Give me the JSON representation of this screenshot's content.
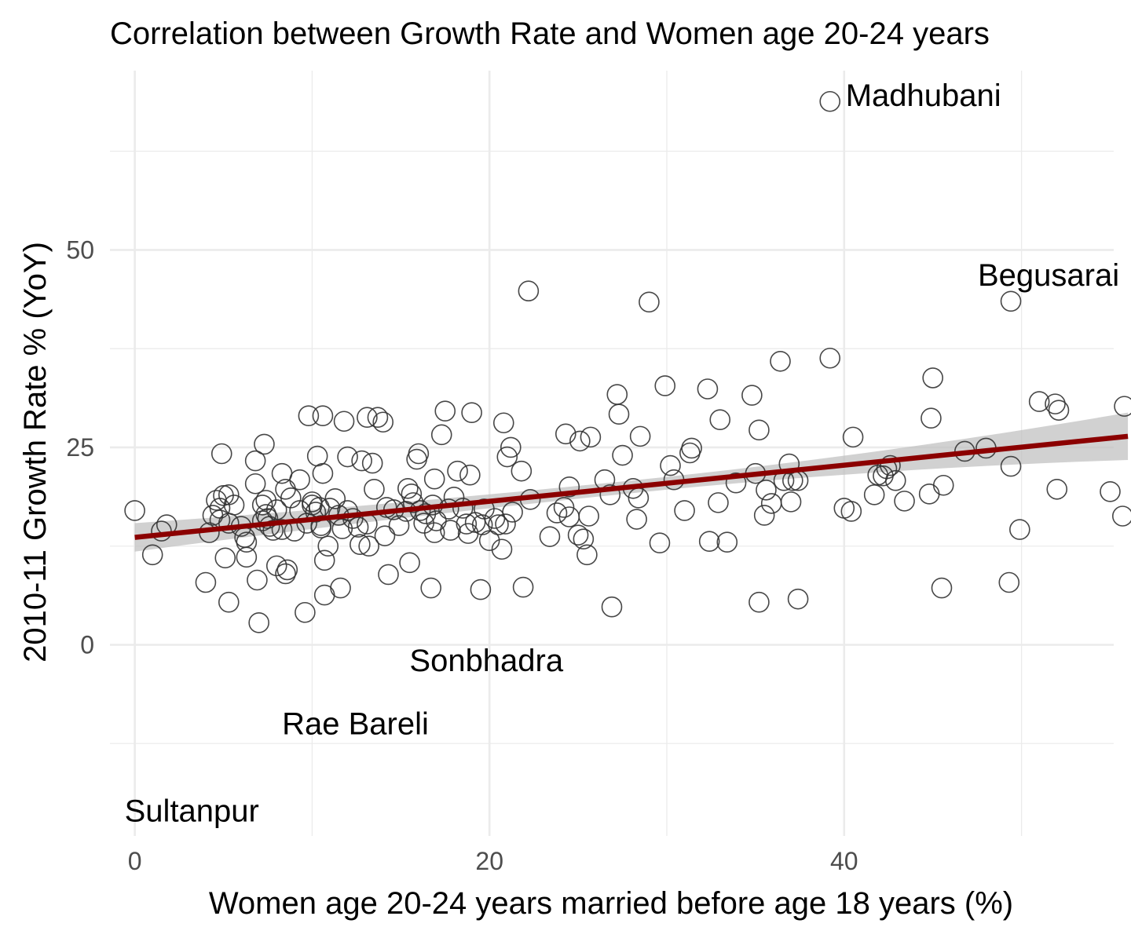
{
  "chart_data": {
    "type": "scatter",
    "title": "Correlation between Growth Rate and Women age 20-24 years",
    "xlabel": "Women age 20-24 years married before age 18 years (%)",
    "ylabel": "2010-11 Growth Rate % (YoY)",
    "xlim": [
      -1.4,
      55.2
    ],
    "ylim": [
      -24.2,
      72.7
    ],
    "x_ticks": [
      0,
      20,
      40
    ],
    "y_ticks": [
      0,
      25,
      50
    ],
    "grid": true,
    "legend": "none",
    "colors": {
      "points": "#333333",
      "trend": "#8b0000",
      "band": "#bebebe"
    },
    "trend_line": {
      "x": [
        0,
        56
      ],
      "y": [
        13.6,
        26.4
      ],
      "ci_half_width_start": 1.8,
      "ci_half_width_mid": 0.8,
      "ci_half_width_end": 3.0
    },
    "annotations": [
      {
        "label": "Madhubani",
        "x": 39.2,
        "y": 68.8
      },
      {
        "label": "Begusarai",
        "x": 49.4,
        "y": 43.5
      },
      {
        "label": "Sonbhadra",
        "x": 17.7,
        "y": -5.3
      },
      {
        "label": "Rae Bareli",
        "x": 14.3,
        "y": -12.7
      },
      {
        "label": "Sultanpur",
        "x": 8.0,
        "y": -19.4
      }
    ],
    "points": [
      [
        0.0,
        17.0
      ],
      [
        1.0,
        11.4
      ],
      [
        1.5,
        14.4
      ],
      [
        1.8,
        15.2
      ],
      [
        4.0,
        7.9
      ],
      [
        4.2,
        14.2
      ],
      [
        4.4,
        16.4
      ],
      [
        4.6,
        18.3
      ],
      [
        4.8,
        15.8
      ],
      [
        4.8,
        17.3
      ],
      [
        4.9,
        24.2
      ],
      [
        5.0,
        18.9
      ],
      [
        5.1,
        11.0
      ],
      [
        5.3,
        19.0
      ],
      [
        5.3,
        15.4
      ],
      [
        5.3,
        5.4
      ],
      [
        5.6,
        17.7
      ],
      [
        6.0,
        15.0
      ],
      [
        6.2,
        13.6
      ],
      [
        6.3,
        11.1
      ],
      [
        6.3,
        13.0
      ],
      [
        6.8,
        23.3
      ],
      [
        6.8,
        20.4
      ],
      [
        6.9,
        8.2
      ],
      [
        7.0,
        2.8
      ],
      [
        7.2,
        17.7
      ],
      [
        7.2,
        15.7
      ],
      [
        7.3,
        25.4
      ],
      [
        7.4,
        16.5
      ],
      [
        7.4,
        18.3
      ],
      [
        7.5,
        16.0
      ],
      [
        7.6,
        15.0
      ],
      [
        7.8,
        14.5
      ],
      [
        8.0,
        17.1
      ],
      [
        8.0,
        10.0
      ],
      [
        8.3,
        21.7
      ],
      [
        8.3,
        14.6
      ],
      [
        8.5,
        19.7
      ],
      [
        8.5,
        9.0
      ],
      [
        8.6,
        9.5
      ],
      [
        8.8,
        18.6
      ],
      [
        9.0,
        14.4
      ],
      [
        9.3,
        20.9
      ],
      [
        9.3,
        17.0
      ],
      [
        9.6,
        4.1
      ],
      [
        9.7,
        15.4
      ],
      [
        9.8,
        29.0
      ],
      [
        10.0,
        17.7
      ],
      [
        10.0,
        18.1
      ],
      [
        10.2,
        16.8
      ],
      [
        10.3,
        23.9
      ],
      [
        10.4,
        17.4
      ],
      [
        10.5,
        15.1
      ],
      [
        10.5,
        14.8
      ],
      [
        10.6,
        29.0
      ],
      [
        10.6,
        21.7
      ],
      [
        10.7,
        6.3
      ],
      [
        10.7,
        10.7
      ],
      [
        10.9,
        12.5
      ],
      [
        11.0,
        17.3
      ],
      [
        11.3,
        18.5
      ],
      [
        11.5,
        16.4
      ],
      [
        11.6,
        7.2
      ],
      [
        11.7,
        14.7
      ],
      [
        11.8,
        28.3
      ],
      [
        12.0,
        23.8
      ],
      [
        12.0,
        17.0
      ],
      [
        12.3,
        16.0
      ],
      [
        12.6,
        14.9
      ],
      [
        12.7,
        12.7
      ],
      [
        12.8,
        23.3
      ],
      [
        13.1,
        28.8
      ],
      [
        13.1,
        15.3
      ],
      [
        13.2,
        12.5
      ],
      [
        13.4,
        23.0
      ],
      [
        13.5,
        19.7
      ],
      [
        13.7,
        28.8
      ],
      [
        14.0,
        28.2
      ],
      [
        14.1,
        13.8
      ],
      [
        14.2,
        17.4
      ],
      [
        14.3,
        8.9
      ],
      [
        14.6,
        17.1
      ],
      [
        14.9,
        15.1
      ],
      [
        15.3,
        16.9
      ],
      [
        15.4,
        19.8
      ],
      [
        15.5,
        10.4
      ],
      [
        15.6,
        19.1
      ],
      [
        15.7,
        18.0
      ],
      [
        15.9,
        23.5
      ],
      [
        16.0,
        24.2
      ],
      [
        16.1,
        17.0
      ],
      [
        16.3,
        15.4
      ],
      [
        16.4,
        16.6
      ],
      [
        16.7,
        7.2
      ],
      [
        16.8,
        17.7
      ],
      [
        16.9,
        21.0
      ],
      [
        16.9,
        14.2
      ],
      [
        17.0,
        15.7
      ],
      [
        17.3,
        26.6
      ],
      [
        17.5,
        29.6
      ],
      [
        17.7,
        17.2
      ],
      [
        17.8,
        14.5
      ],
      [
        18.0,
        18.7
      ],
      [
        18.2,
        22.0
      ],
      [
        18.5,
        17.3
      ],
      [
        18.7,
        15.3
      ],
      [
        18.8,
        14.1
      ],
      [
        18.9,
        21.5
      ],
      [
        19.0,
        29.4
      ],
      [
        19.2,
        15.5
      ],
      [
        19.5,
        7.0
      ],
      [
        19.6,
        15.2
      ],
      [
        19.7,
        17.2
      ],
      [
        20.0,
        13.2
      ],
      [
        20.3,
        16.0
      ],
      [
        20.5,
        15.2
      ],
      [
        20.7,
        12.1
      ],
      [
        20.8,
        28.1
      ],
      [
        20.9,
        15.3
      ],
      [
        21.0,
        23.8
      ],
      [
        21.2,
        25.0
      ],
      [
        21.3,
        16.8
      ],
      [
        21.8,
        22.0
      ],
      [
        21.9,
        7.3
      ],
      [
        22.2,
        44.8
      ],
      [
        22.3,
        18.4
      ],
      [
        23.4,
        13.7
      ],
      [
        23.8,
        16.7
      ],
      [
        24.2,
        17.4
      ],
      [
        24.3,
        26.7
      ],
      [
        24.5,
        20.0
      ],
      [
        24.5,
        16.2
      ],
      [
        25.0,
        13.9
      ],
      [
        25.1,
        25.8
      ],
      [
        25.3,
        13.4
      ],
      [
        25.5,
        11.4
      ],
      [
        25.6,
        16.3
      ],
      [
        25.7,
        26.3
      ],
      [
        26.5,
        20.9
      ],
      [
        26.8,
        19.0
      ],
      [
        26.9,
        4.8
      ],
      [
        27.2,
        31.7
      ],
      [
        27.3,
        29.2
      ],
      [
        27.5,
        24.0
      ],
      [
        28.1,
        19.8
      ],
      [
        28.3,
        15.9
      ],
      [
        28.4,
        18.6
      ],
      [
        28.5,
        26.4
      ],
      [
        29.0,
        43.4
      ],
      [
        29.6,
        12.9
      ],
      [
        29.9,
        32.8
      ],
      [
        30.2,
        22.7
      ],
      [
        30.4,
        20.9
      ],
      [
        31.0,
        17.0
      ],
      [
        31.3,
        24.3
      ],
      [
        31.4,
        24.9
      ],
      [
        32.3,
        32.4
      ],
      [
        32.4,
        13.1
      ],
      [
        32.9,
        18.0
      ],
      [
        33.0,
        28.5
      ],
      [
        33.4,
        13.0
      ],
      [
        33.9,
        20.5
      ],
      [
        34.8,
        31.6
      ],
      [
        35.0,
        21.7
      ],
      [
        35.2,
        27.2
      ],
      [
        35.2,
        5.4
      ],
      [
        35.5,
        16.4
      ],
      [
        35.6,
        19.6
      ],
      [
        35.9,
        17.9
      ],
      [
        36.4,
        35.9
      ],
      [
        36.6,
        20.8
      ],
      [
        36.9,
        22.9
      ],
      [
        37.0,
        18.1
      ],
      [
        37.1,
        20.8
      ],
      [
        37.4,
        20.8
      ],
      [
        37.4,
        5.8
      ],
      [
        39.2,
        68.8
      ],
      [
        39.2,
        36.3
      ],
      [
        40.0,
        17.3
      ],
      [
        40.4,
        16.9
      ],
      [
        40.5,
        26.3
      ],
      [
        41.7,
        19.0
      ],
      [
        41.9,
        21.5
      ],
      [
        42.2,
        21.4
      ],
      [
        42.4,
        22.3
      ],
      [
        42.6,
        22.7
      ],
      [
        42.9,
        20.8
      ],
      [
        43.4,
        18.2
      ],
      [
        44.8,
        19.1
      ],
      [
        44.9,
        28.7
      ],
      [
        45.0,
        33.8
      ],
      [
        45.5,
        7.2
      ],
      [
        45.6,
        20.2
      ],
      [
        46.8,
        24.5
      ],
      [
        48.0,
        24.9
      ],
      [
        49.3,
        7.9
      ],
      [
        49.4,
        43.5
      ],
      [
        49.4,
        22.6
      ],
      [
        49.9,
        14.6
      ],
      [
        51.0,
        30.8
      ],
      [
        51.9,
        30.5
      ],
      [
        52.0,
        19.7
      ],
      [
        52.1,
        29.7
      ],
      [
        55.0,
        19.4
      ],
      [
        55.7,
        16.3
      ],
      [
        55.8,
        30.2
      ]
    ]
  }
}
